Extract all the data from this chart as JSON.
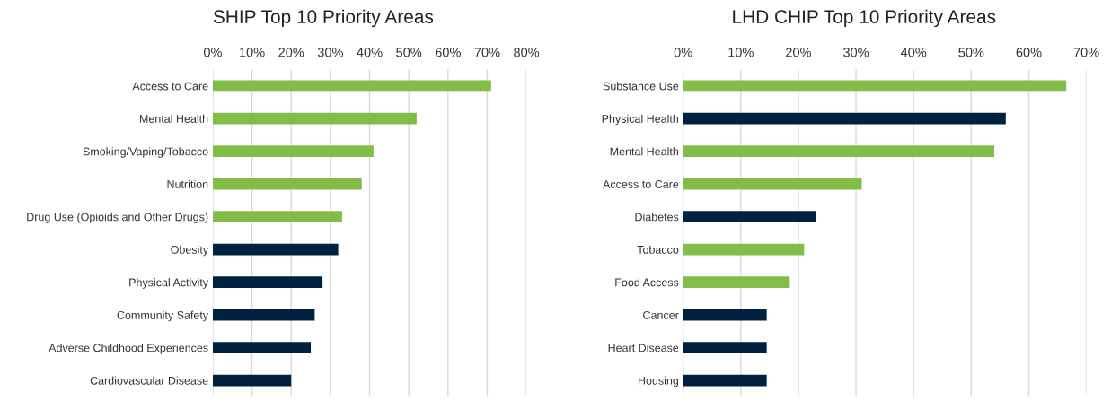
{
  "chart_data": [
    {
      "type": "bar",
      "orientation": "horizontal",
      "title": "SHIP Top 10 Priority Areas",
      "categories": [
        "Access to Care",
        "Mental Health",
        "Smoking/Vaping/Tobacco",
        "Nutrition",
        "Drug Use (Opioids and Other Drugs)",
        "Obesity",
        "Physical Activity",
        "Community Safety",
        "Adverse Childhood Experiences",
        "Cardiovascular Disease"
      ],
      "values": [
        71,
        52,
        41,
        38,
        33,
        32,
        28,
        26,
        25,
        20
      ],
      "colors": [
        "#84bc4a",
        "#84bc4a",
        "#84bc4a",
        "#84bc4a",
        "#84bc4a",
        "#012140",
        "#012140",
        "#012140",
        "#012140",
        "#012140"
      ],
      "xlim": [
        0,
        80
      ],
      "xticks": [
        {
          "value": 0,
          "label": "0%"
        },
        {
          "value": 10,
          "label": "10%"
        },
        {
          "value": 20,
          "label": "20%"
        },
        {
          "value": 30,
          "label": "30%"
        },
        {
          "value": 40,
          "label": "40%"
        },
        {
          "value": 50,
          "label": "50%"
        },
        {
          "value": 60,
          "label": "60%"
        },
        {
          "value": 70,
          "label": "70%"
        },
        {
          "value": 80,
          "label": "80%"
        }
      ],
      "grid": "x",
      "legend": false
    },
    {
      "type": "bar",
      "orientation": "horizontal",
      "title": "LHD CHIP Top 10 Priority Areas",
      "categories": [
        "Substance Use",
        "Physical Health",
        "Mental Health",
        "Access to Care",
        "Diabetes",
        "Tobacco",
        "Food Access",
        "Cancer",
        "Heart Disease",
        "Housing"
      ],
      "values": [
        66.5,
        56,
        54,
        31,
        23,
        21,
        18.5,
        14.5,
        14.5,
        14.5
      ],
      "colors": [
        "#84bc4a",
        "#012140",
        "#84bc4a",
        "#84bc4a",
        "#012140",
        "#84bc4a",
        "#84bc4a",
        "#012140",
        "#012140",
        "#012140"
      ],
      "xlim": [
        0,
        70
      ],
      "xticks": [
        {
          "value": 0,
          "label": "0%"
        },
        {
          "value": 10,
          "label": "10%"
        },
        {
          "value": 20,
          "label": "20%"
        },
        {
          "value": 30,
          "label": "30%"
        },
        {
          "value": 40,
          "label": "40%"
        },
        {
          "value": 50,
          "label": "50%"
        },
        {
          "value": 60,
          "label": "60%"
        },
        {
          "value": 70,
          "label": "70%"
        }
      ],
      "grid": "x",
      "legend": false
    }
  ]
}
